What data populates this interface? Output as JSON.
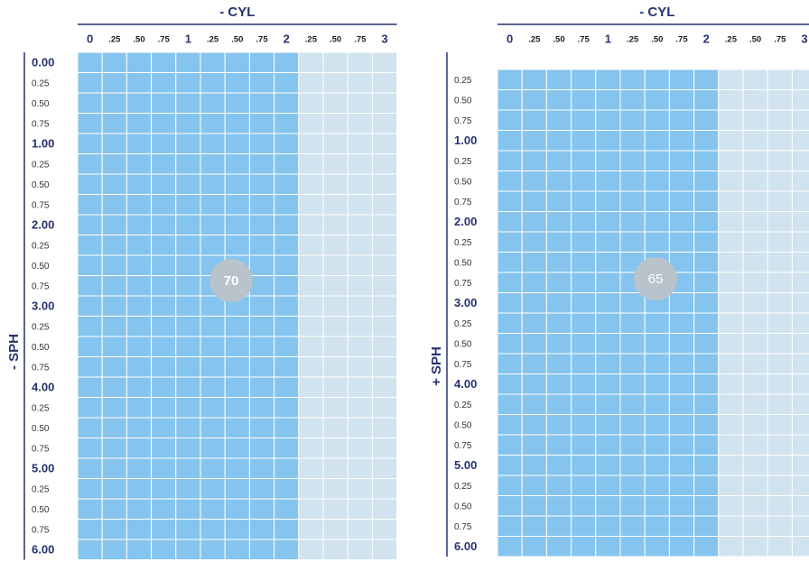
{
  "panels": [
    {
      "cyl_label": "- CYL",
      "sph_label": "- SPH",
      "columns": [
        "0",
        ".25",
        ".50",
        ".75",
        "1",
        ".25",
        ".50",
        ".75",
        "2",
        ".25",
        ".50",
        ".75",
        "3"
      ],
      "rows": [
        "0.00",
        "0.25",
        "0.50",
        "0.75",
        "1.00",
        "0.25",
        "0.50",
        "0.75",
        "2.00",
        "0.25",
        "0.50",
        "0.75",
        "3.00",
        "0.25",
        "0.50",
        "0.75",
        "4.00",
        "0.25",
        "0.50",
        "0.75",
        "5.00",
        "0.25",
        "0.50",
        "0.75",
        "6.00"
      ],
      "badge": "70"
    },
    {
      "cyl_label": "- CYL",
      "sph_label": "+ SPH",
      "columns": [
        "0",
        ".25",
        ".50",
        ".75",
        "1",
        ".25",
        ".50",
        ".75",
        "2",
        ".25",
        ".50",
        ".75",
        "3"
      ],
      "rows": [
        "0.25",
        "0.50",
        "0.75",
        "1.00",
        "0.25",
        "0.50",
        "0.75",
        "2.00",
        "0.25",
        "0.50",
        "0.75",
        "3.00",
        "0.25",
        "0.50",
        "0.75",
        "4.00",
        "0.25",
        "0.50",
        "0.75",
        "5.00",
        "0.25",
        "0.50",
        "0.75",
        "6.00"
      ],
      "badge": "65"
    }
  ]
}
